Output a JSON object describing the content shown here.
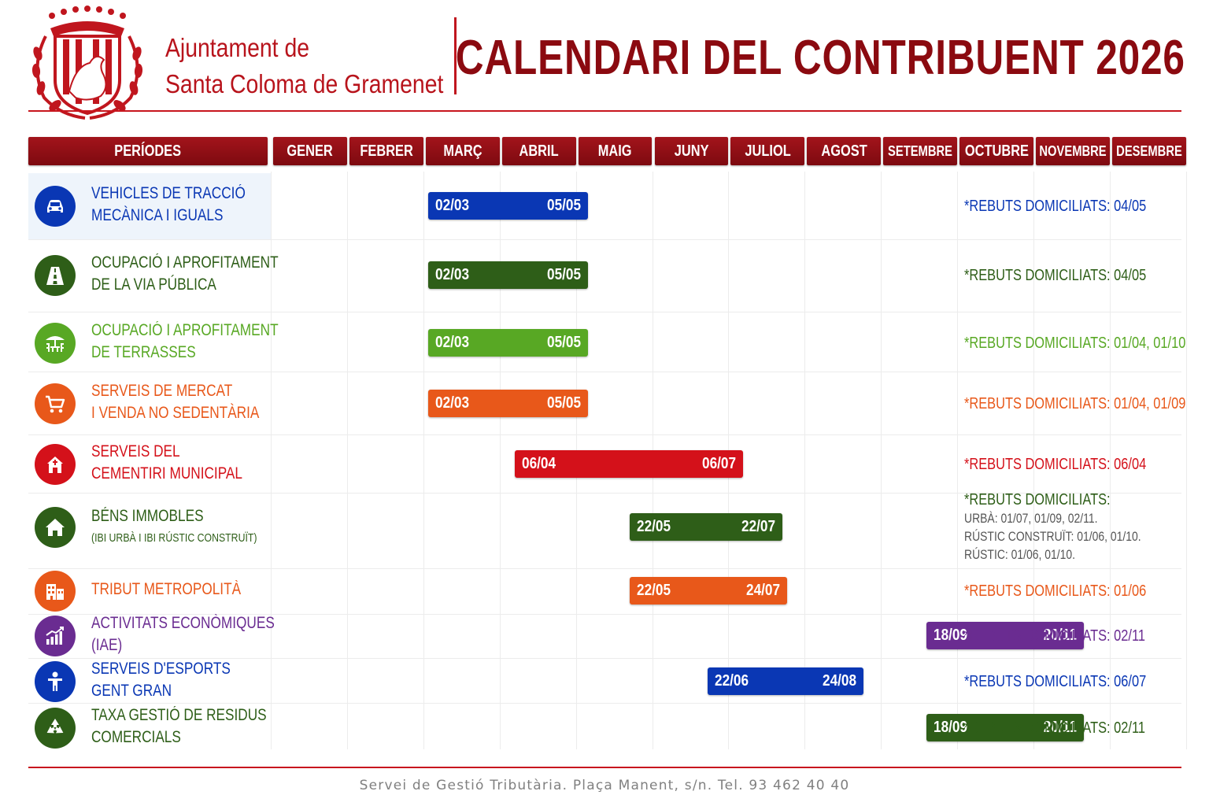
{
  "header": {
    "org_line1": "Ajuntament de",
    "org_line2": "Santa Coloma de Gramenet",
    "title": "CALENDARI DEL CONTRIBUENT 2026"
  },
  "colors": {
    "primary": "#b8141c",
    "dark_red": "#8b0a10",
    "blue": "#0a37b4",
    "dark_green": "#2e5e18",
    "green": "#58a824",
    "orange": "#e8581a",
    "red": "#d4111a",
    "purple": "#6a2c91"
  },
  "chart_data": {
    "type": "gantt",
    "title": "CALENDARI DEL CONTRIBUENT 2026",
    "period_header": "PERÍODES",
    "months": [
      "GENER",
      "FEBRER",
      "MARÇ",
      "ABRIL",
      "MAIG",
      "JUNY",
      "JULIOL",
      "AGOST",
      "SETEMBRE",
      "OCTUBRE",
      "NOVEMBRE",
      "DESEMBRE"
    ],
    "rows": [
      {
        "name": "vehicles",
        "label1": "VEHICLES DE TRACCIÓ",
        "label2": "MECÀNICA I IGUALS",
        "sub": "",
        "icon": "car-icon",
        "color": "#0a37b4",
        "start": "02/03",
        "end": "05/05",
        "note": "*REBUTS DOMICILIATS: 04/05",
        "note_lines": []
      },
      {
        "name": "via-publica",
        "label1": "OCUPACIÓ I APROFITAMENT",
        "label2": "DE LA VIA PÚBLICA",
        "sub": "",
        "icon": "road-icon",
        "color": "#2e5e18",
        "start": "02/03",
        "end": "05/05",
        "note": "*REBUTS DOMICILIATS: 04/05",
        "note_lines": []
      },
      {
        "name": "terrasses",
        "label1": "OCUPACIÓ I APROFITAMENT",
        "label2": "DE TERRASSES",
        "sub": "",
        "icon": "terrace-icon",
        "color": "#58a824",
        "start": "02/03",
        "end": "05/05",
        "note": "*REBUTS DOMICILIATS: 01/04, 01/10",
        "note_lines": []
      },
      {
        "name": "mercat",
        "label1": "SERVEIS DE MERCAT",
        "label2": "I VENDA NO SEDENTÀRIA",
        "sub": "",
        "icon": "cart-icon",
        "color": "#e8581a",
        "start": "02/03",
        "end": "05/05",
        "note": "*REBUTS DOMICILIATS: 01/04, 01/09",
        "note_lines": []
      },
      {
        "name": "cementiri",
        "label1": "SERVEIS DEL",
        "label2": "CEMENTIRI MUNICIPAL",
        "sub": "",
        "icon": "chapel-icon",
        "color": "#d4111a",
        "start": "06/04",
        "end": "06/07",
        "note": "*REBUTS DOMICILIATS: 06/04",
        "note_lines": []
      },
      {
        "name": "immobles",
        "label1": "BÉNS IMMOBLES",
        "label2": "",
        "sub": "(IBI URBÀ I IBI RÚSTIC CONSTRUÏT)",
        "icon": "house-icon",
        "color": "#2e5e18",
        "start": "22/05",
        "end": "22/07",
        "note": "*REBUTS DOMICILIATS:",
        "note_lines": [
          "URBÀ: 01/07, 01/09, 02/11.",
          "RÚSTIC CONSTRUÏT: 01/06, 01/10.",
          "RÚSTIC: 01/06, 01/10."
        ]
      },
      {
        "name": "metropolita",
        "label1": "TRIBUT METROPOLITÀ",
        "label2": "",
        "sub": "",
        "icon": "buildings-icon",
        "color": "#e8581a",
        "start": "22/05",
        "end": "24/07",
        "note": "*REBUTS DOMICILIATS: 01/06",
        "note_lines": []
      },
      {
        "name": "iae",
        "label1": "ACTIVITATS ECONÒMIQUES",
        "label2": "(IAE)",
        "sub": "",
        "icon": "chart-icon",
        "color": "#6a2c91",
        "start": "18/09",
        "end": "20/11",
        "note": "*REBUTS DOMICILIATS: 02/11",
        "note_lines": []
      },
      {
        "name": "esports",
        "label1": "SERVEIS D'ESPORTS",
        "label2": "GENT GRAN",
        "sub": "",
        "icon": "person-icon",
        "color": "#0a37b4",
        "start": "22/06",
        "end": "24/08",
        "note": "*REBUTS DOMICILIATS: 06/07",
        "note_lines": []
      },
      {
        "name": "residus",
        "label1": "TAXA GESTIÓ DE RESIDUS",
        "label2": "COMERCIALS",
        "sub": "",
        "icon": "recycle-icon",
        "color": "#2e5e18",
        "start": "18/09",
        "end": "20/11",
        "note": "*REBUTS DOMICILIATS: 02/11",
        "note_lines": []
      }
    ]
  },
  "footer": {
    "text": "Servei de Gestió Tributària. Plaça Manent, s/n. Tel. 93 462 40 40"
  }
}
